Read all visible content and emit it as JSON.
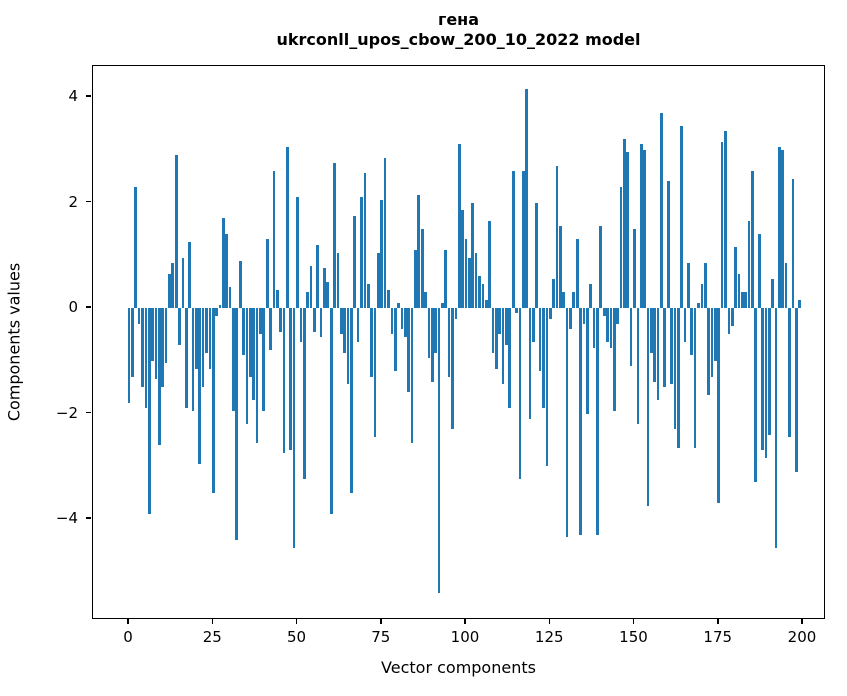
{
  "figure": {
    "title_line1": "гена",
    "title_line2": "ukrconll_upos_cbow_200_10_2022 model"
  },
  "chart_data": {
    "type": "bar",
    "title": "гена",
    "subtitle": "ukrconll_upos_cbow_200_10_2022 model",
    "xlabel": "Vector components",
    "ylabel": "Components values",
    "bar_color": "#1f77b4",
    "axis_color": "#000000",
    "background_color": "#ffffff",
    "grid": false,
    "legend": null,
    "n_components": 200,
    "xlim": [
      -10.7,
      206.8
    ],
    "ylim": [
      -5.9,
      4.6
    ],
    "xticks": [
      0,
      25,
      50,
      75,
      100,
      125,
      150,
      175,
      200
    ],
    "yticks": [
      4,
      2,
      0,
      -2,
      -4
    ],
    "bar_width": 0.8,
    "values": [
      -1.8,
      -1.3,
      2.3,
      -0.3,
      -1.5,
      -1.9,
      -3.9,
      -1.0,
      -1.35,
      -2.6,
      -1.5,
      -1.05,
      0.65,
      0.85,
      2.9,
      -0.7,
      0.95,
      -1.9,
      1.25,
      -1.95,
      -1.15,
      -2.95,
      -1.5,
      -0.85,
      -1.15,
      -3.5,
      -0.15,
      0.05,
      1.7,
      1.4,
      0.4,
      -1.95,
      -4.4,
      0.9,
      -0.9,
      -2.2,
      -1.3,
      -1.75,
      -2.55,
      -0.5,
      -1.95,
      1.3,
      -0.8,
      2.6,
      0.35,
      -0.45,
      -2.75,
      3.05,
      -2.7,
      -4.55,
      2.1,
      -0.65,
      -3.25,
      0.3,
      0.8,
      -0.45,
      1.2,
      -0.55,
      0.75,
      0.5,
      -3.9,
      2.75,
      1.05,
      -0.5,
      -0.85,
      -1.45,
      -3.5,
      1.75,
      -0.65,
      2.1,
      2.55,
      0.45,
      -1.3,
      -2.45,
      1.05,
      2.05,
      2.85,
      0.35,
      -0.5,
      -1.2,
      0.1,
      -0.4,
      -0.55,
      -1.6,
      -2.55,
      1.1,
      2.15,
      1.5,
      0.3,
      -0.95,
      -1.4,
      -0.85,
      -5.4,
      0.1,
      1.1,
      -1.3,
      -2.3,
      -0.2,
      3.1,
      1.85,
      1.3,
      0.95,
      2.0,
      1.05,
      0.6,
      0.45,
      0.15,
      1.65,
      -0.85,
      -1.15,
      -0.5,
      -1.45,
      -0.7,
      -1.9,
      2.6,
      -0.1,
      -3.25,
      2.6,
      4.15,
      -2.1,
      -0.65,
      2.0,
      -1.2,
      -1.9,
      -3.0,
      -0.2,
      0.55,
      2.7,
      1.55,
      0.3,
      -4.35,
      -0.4,
      0.3,
      1.3,
      -4.3,
      -0.3,
      -2.0,
      0.45,
      -0.75,
      -4.3,
      1.55,
      -0.15,
      -0.65,
      -0.75,
      -1.95,
      -0.3,
      2.3,
      3.2,
      2.95,
      -1.1,
      1.5,
      -2.2,
      3.1,
      3.0,
      -3.75,
      -0.85,
      -1.4,
      -1.75,
      3.7,
      -1.5,
      2.4,
      -1.45,
      -2.3,
      -2.65,
      3.45,
      -0.65,
      0.85,
      -0.9,
      -2.65,
      0.1,
      0.45,
      0.85,
      -1.65,
      -1.3,
      -1.0,
      -3.7,
      3.15,
      3.35,
      -0.5,
      -0.35,
      1.15,
      0.65,
      0.3,
      0.3,
      1.65,
      2.6,
      -3.3,
      1.4,
      -2.7,
      -2.85,
      -2.4,
      0.55,
      -4.55,
      3.05,
      3.0,
      0.85,
      -2.45,
      2.45,
      -3.1,
      0.15
    ]
  }
}
